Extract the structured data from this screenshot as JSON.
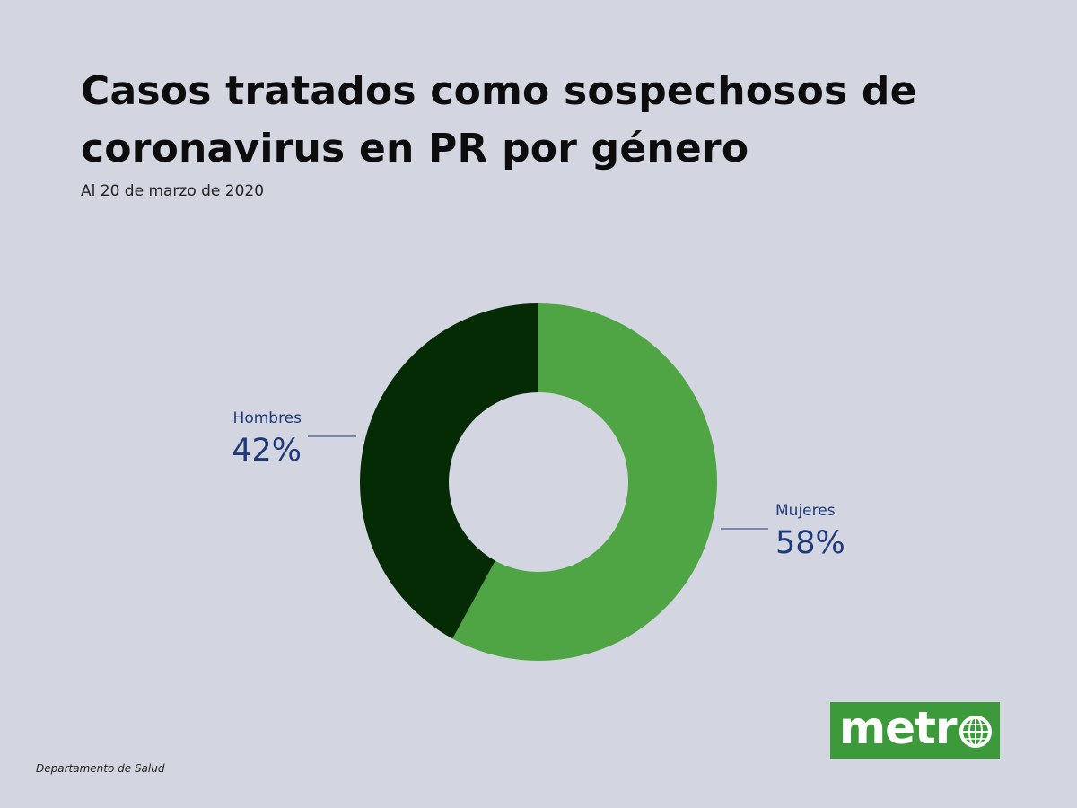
{
  "title": "Casos tratados como sospechosos de coronavirus en PR por género",
  "subtitle": "Al 20 de marzo de 2020",
  "source": "Departamento de Salud",
  "logo": {
    "text": "metr",
    "icon": "globe-icon"
  },
  "colors": {
    "background": "#d3d5e0",
    "hombres": "#052b05",
    "mujeres": "#4fa443",
    "label": "#1e3a7a",
    "logo_bg": "#3c9a3b"
  },
  "chart_data": {
    "type": "pie",
    "title": "Casos tratados como sospechosos de coronavirus en PR por género",
    "subtitle": "Al 20 de marzo de 2020",
    "categories": [
      "Mujeres",
      "Hombres"
    ],
    "values": [
      58,
      42
    ],
    "value_labels": [
      "58%",
      "42%"
    ],
    "units": "%",
    "donut": true,
    "legend": "none",
    "series_colors": [
      "#4fa443",
      "#052b05"
    ]
  }
}
